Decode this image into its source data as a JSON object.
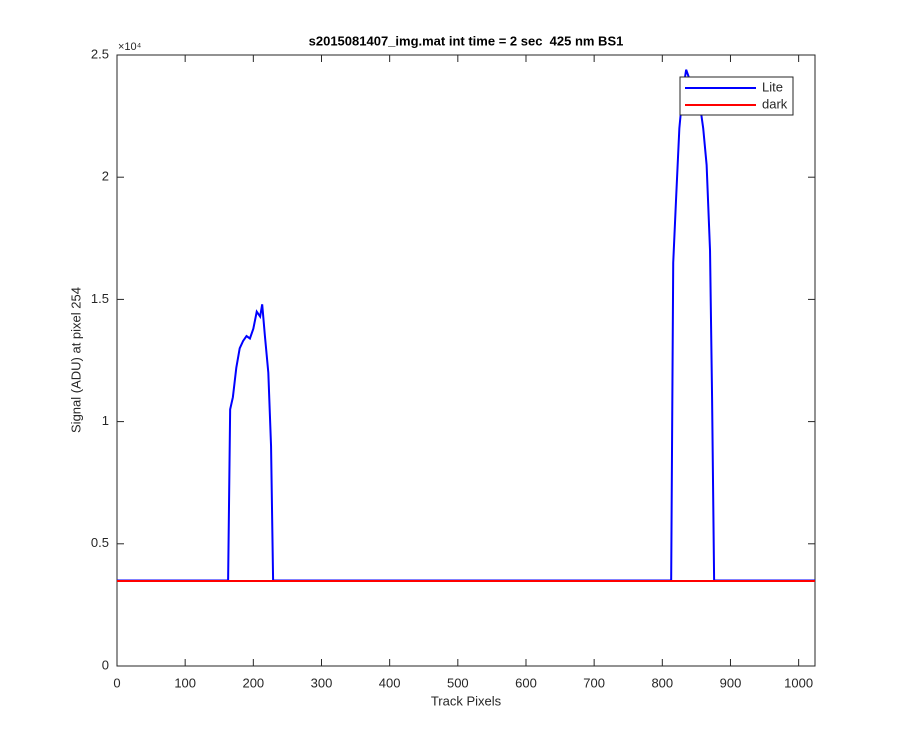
{
  "chart_data": {
    "type": "line",
    "title": "s2015081407_img.mat int time = 2 sec  425 nm BS1",
    "x_label": "Track Pixels",
    "y_label": "Signal (ADU) at pixel 254",
    "y_exponent_label": "×10⁴",
    "xlim": [
      0,
      1024
    ],
    "xticks": [
      0,
      100,
      200,
      300,
      400,
      500,
      600,
      700,
      800,
      900,
      1000
    ],
    "ylim": [
      0,
      25000
    ],
    "yticks": [
      0,
      {
        "value": 5000,
        "label": "0.5"
      },
      {
        "value": 10000,
        "label": "1"
      },
      {
        "value": 15000,
        "label": "1.5"
      },
      {
        "value": 20000,
        "label": "2"
      },
      {
        "value": 25000,
        "label": "2.5"
      }
    ],
    "legend_position": "northeast",
    "series": [
      {
        "name": "Lite",
        "color": "#0000ff",
        "x": [
          0,
          160,
          163,
          166,
          170,
          175,
          180,
          185,
          190,
          195,
          200,
          205,
          210,
          213,
          217,
          222,
          226,
          229,
          400,
          600,
          810,
          813,
          816,
          820,
          825,
          830,
          835,
          840,
          845,
          850,
          855,
          860,
          865,
          870,
          873,
          876,
          1024
        ],
        "values": [
          3500,
          3500,
          3500,
          10500,
          11000,
          12200,
          13000,
          13300,
          13500,
          13400,
          13800,
          14500,
          14300,
          14800,
          13500,
          12000,
          9000,
          3500,
          3500,
          3500,
          3500,
          3500,
          16500,
          19000,
          22000,
          23500,
          24400,
          24000,
          23500,
          23200,
          23000,
          22000,
          20500,
          17000,
          11000,
          3500,
          3500
        ]
      },
      {
        "name": "dark",
        "color": "#ff0000",
        "x": [
          0,
          200,
          400,
          600,
          800,
          1024
        ],
        "values": [
          3480,
          3480,
          3480,
          3480,
          3480,
          3480
        ]
      }
    ]
  }
}
